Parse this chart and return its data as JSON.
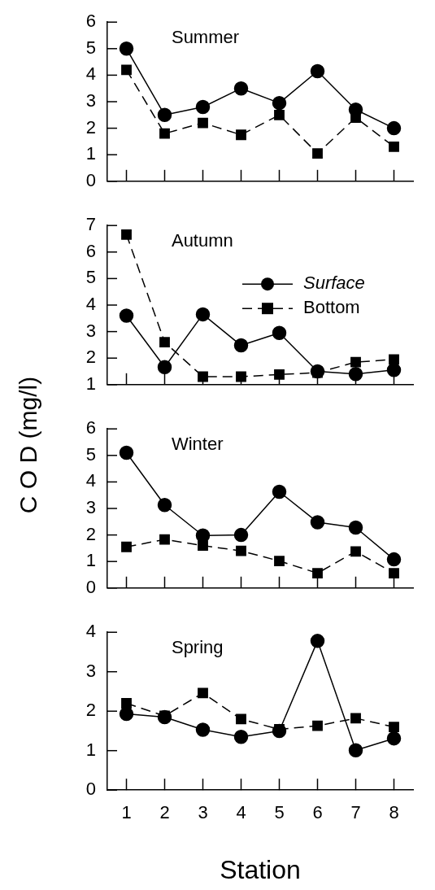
{
  "chart_data": [
    {
      "type": "line",
      "title": "Summer",
      "categories": [
        "1",
        "2",
        "3",
        "4",
        "5",
        "6",
        "7",
        "8"
      ],
      "ylim": [
        0,
        6
      ],
      "yticks": [
        0,
        1,
        2,
        3,
        4,
        5,
        6
      ],
      "tick_labels": "y",
      "grid": false,
      "legend": false,
      "series": [
        {
          "color": "#000000",
          "marker": "circle",
          "line_style": "solid",
          "values": [
            5.0,
            2.5,
            2.8,
            3.5,
            2.95,
            4.15,
            2.7,
            2.0
          ]
        },
        {
          "color": "#000000",
          "marker": "square",
          "line_style": "dashed",
          "values": [
            4.2,
            1.8,
            2.2,
            1.75,
            2.5,
            1.05,
            2.4,
            1.3
          ]
        }
      ]
    },
    {
      "type": "line",
      "title": "Autumn",
      "ylabel": "C O D (mg/l)",
      "categories": [
        "1",
        "2",
        "3",
        "4",
        "5",
        "6",
        "7",
        "8"
      ],
      "ylim": [
        1,
        7
      ],
      "yticks": [
        1,
        2,
        3,
        4,
        5,
        6,
        7
      ],
      "tick_labels": "y",
      "grid": false,
      "legend": "right",
      "series": [
        {
          "name": "Surface",
          "color": "#000000",
          "marker": "circle",
          "line_style": "solid",
          "values": [
            3.6,
            1.66,
            3.65,
            2.48,
            2.95,
            1.5,
            1.4,
            1.55
          ]
        },
        {
          "name": "Bottom",
          "color": "#000000",
          "marker": "square",
          "line_style": "dashed",
          "values": [
            6.66,
            2.6,
            1.3,
            1.3,
            1.38,
            1.45,
            1.85,
            1.95
          ]
        }
      ]
    },
    {
      "type": "line",
      "title": "Winter",
      "categories": [
        "1",
        "2",
        "3",
        "4",
        "5",
        "6",
        "7",
        "8"
      ],
      "ylim": [
        0,
        6
      ],
      "yticks": [
        0,
        1,
        2,
        3,
        4,
        5,
        6
      ],
      "tick_labels": "y",
      "grid": false,
      "legend": false,
      "series": [
        {
          "color": "#000000",
          "marker": "circle",
          "line_style": "solid",
          "values": [
            5.1,
            3.13,
            1.98,
            2.0,
            3.63,
            2.48,
            2.28,
            1.08
          ]
        },
        {
          "color": "#000000",
          "marker": "square",
          "line_style": "dashed",
          "values": [
            1.55,
            1.83,
            1.6,
            1.4,
            1.02,
            0.56,
            1.38,
            0.56
          ]
        }
      ]
    },
    {
      "type": "line",
      "title": "Spring",
      "xlabel": "Station",
      "categories": [
        "1",
        "2",
        "3",
        "4",
        "5",
        "6",
        "7",
        "8"
      ],
      "ylim": [
        0,
        4
      ],
      "yticks": [
        0,
        1,
        2,
        3,
        4
      ],
      "grid": false,
      "legend": false,
      "series": [
        {
          "color": "#000000",
          "marker": "circle",
          "line_style": "solid",
          "values": [
            1.93,
            1.85,
            1.53,
            1.35,
            1.5,
            3.78,
            1.01,
            1.31
          ]
        },
        {
          "color": "#000000",
          "marker": "square",
          "line_style": "dashed",
          "values": [
            2.2,
            1.88,
            2.46,
            1.8,
            1.54,
            1.63,
            1.82,
            1.6
          ]
        }
      ]
    }
  ]
}
